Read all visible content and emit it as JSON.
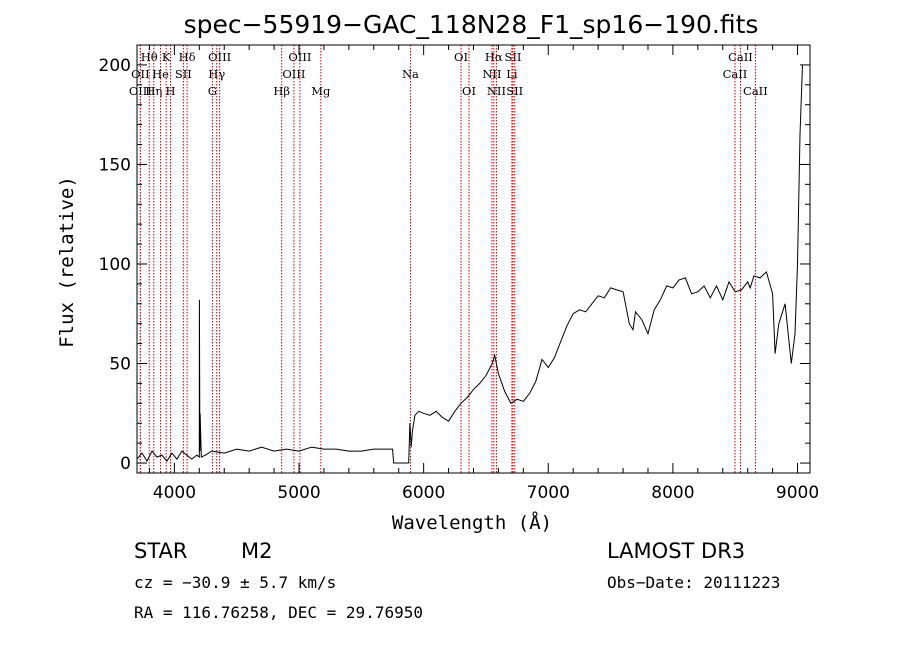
{
  "chart_data": {
    "type": "line",
    "title": "spec−55919−GAC_118N28_F1_sp16−190.fits",
    "xlabel": "Wavelength (Å)",
    "ylabel": "Flux (relative)",
    "xlim": [
      3700,
      9100
    ],
    "ylim": [
      -5,
      210
    ],
    "xticks": [
      4000,
      5000,
      6000,
      7000,
      8000,
      9000
    ],
    "yticks": [
      0,
      50,
      100,
      150,
      200
    ],
    "grid": false,
    "series": [
      {
        "name": "flux",
        "x": [
          3700,
          3740,
          3780,
          3820,
          3860,
          3900,
          3940,
          3980,
          4020,
          4060,
          4100,
          4140,
          4180,
          4200,
          4201,
          4205,
          4206,
          4215,
          4216,
          4250,
          4300,
          4400,
          4500,
          4600,
          4700,
          4800,
          4900,
          5000,
          5100,
          5200,
          5300,
          5400,
          5500,
          5600,
          5700,
          5750,
          5760,
          5800,
          5850,
          5880,
          5890,
          5900,
          5910,
          5930,
          5960,
          6000,
          6050,
          6100,
          6150,
          6200,
          6250,
          6300,
          6350,
          6400,
          6450,
          6500,
          6550,
          6570,
          6600,
          6650,
          6700,
          6750,
          6800,
          6850,
          6900,
          6950,
          7000,
          7050,
          7100,
          7150,
          7200,
          7250,
          7300,
          7350,
          7400,
          7450,
          7500,
          7550,
          7600,
          7650,
          7680,
          7700,
          7750,
          7800,
          7850,
          7900,
          7950,
          8000,
          8050,
          8100,
          8150,
          8200,
          8250,
          8300,
          8350,
          8400,
          8450,
          8500,
          8550,
          8600,
          8620,
          8650,
          8700,
          8750,
          8800,
          8820,
          8850,
          8900,
          8950,
          8980,
          9000,
          9020,
          9040
        ],
        "values": [
          2,
          5,
          1,
          6,
          3,
          4,
          1,
          5,
          2,
          6,
          4,
          2,
          4,
          3,
          82,
          6,
          25,
          5,
          3,
          4,
          6,
          5,
          7,
          6,
          8,
          6,
          7,
          6,
          8,
          7,
          7,
          6,
          6,
          7,
          7,
          7,
          0,
          0,
          0,
          0,
          20,
          8,
          16,
          24,
          26,
          25,
          24,
          26,
          23,
          21,
          26,
          30,
          33,
          37,
          40,
          44,
          50,
          54,
          45,
          36,
          30,
          32,
          31,
          35,
          41,
          52,
          48,
          53,
          61,
          69,
          75,
          77,
          76,
          80,
          84,
          83,
          88,
          87,
          86,
          70,
          67,
          76,
          72,
          65,
          77,
          82,
          89,
          88,
          92,
          93,
          85,
          86,
          89,
          83,
          89,
          82,
          91,
          86,
          87,
          91,
          88,
          94,
          93,
          96,
          85,
          55,
          70,
          80,
          50,
          65,
          100,
          165,
          200
        ],
        "color": "#000000"
      }
    ],
    "spectral_lines": [
      {
        "label": "Hθ",
        "x": 3798,
        "row": 0
      },
      {
        "label": "OII",
        "x": 3727,
        "row": 1
      },
      {
        "label": "OIII",
        "x": 3727,
        "row": 2
      },
      {
        "label": "Hη",
        "x": 3835,
        "row": 2
      },
      {
        "label": "He",
        "x": 3889,
        "row": 1
      },
      {
        "label": "K",
        "x": 3934,
        "row": 0
      },
      {
        "label": "H",
        "x": 3969,
        "row": 2
      },
      {
        "label": "SII",
        "x": 4072,
        "row": 1
      },
      {
        "label": "Hδ",
        "x": 4102,
        "row": 0
      },
      {
        "label": "OIII",
        "x": 4363,
        "row": 0
      },
      {
        "label": "Hγ",
        "x": 4340,
        "row": 1
      },
      {
        "label": "G",
        "x": 4305,
        "row": 2
      },
      {
        "label": "Hβ",
        "x": 4861,
        "row": 2
      },
      {
        "label": "OIII",
        "x": 5007,
        "row": 0
      },
      {
        "label": "OIII",
        "x": 4959,
        "row": 1
      },
      {
        "label": "Mg",
        "x": 5175,
        "row": 2
      },
      {
        "label": "Na",
        "x": 5894,
        "row": 1
      },
      {
        "label": "OI",
        "x": 6300,
        "row": 0
      },
      {
        "label": "OI",
        "x": 6364,
        "row": 2
      },
      {
        "label": "Hα",
        "x": 6563,
        "row": 0
      },
      {
        "label": "SII",
        "x": 6717,
        "row": 0
      },
      {
        "label": "NII",
        "x": 6548,
        "row": 1
      },
      {
        "label": "Li",
        "x": 6708,
        "row": 1
      },
      {
        "label": "NII",
        "x": 6584,
        "row": 2
      },
      {
        "label": "SII",
        "x": 6731,
        "row": 2
      },
      {
        "label": "CaII",
        "x": 8542,
        "row": 0
      },
      {
        "label": "CaII",
        "x": 8498,
        "row": 1
      },
      {
        "label": "CaII",
        "x": 8662,
        "row": 2
      }
    ],
    "line_color": "#cc0000"
  },
  "info": {
    "class": "STAR",
    "subclass": "M2",
    "survey": "LAMOST DR3",
    "cz": "cz = −30.9 ± 5.7 km/s",
    "obs_date": "Obs−Date: 20111223",
    "coords": "RA = 116.76258, DEC =  29.76950"
  }
}
